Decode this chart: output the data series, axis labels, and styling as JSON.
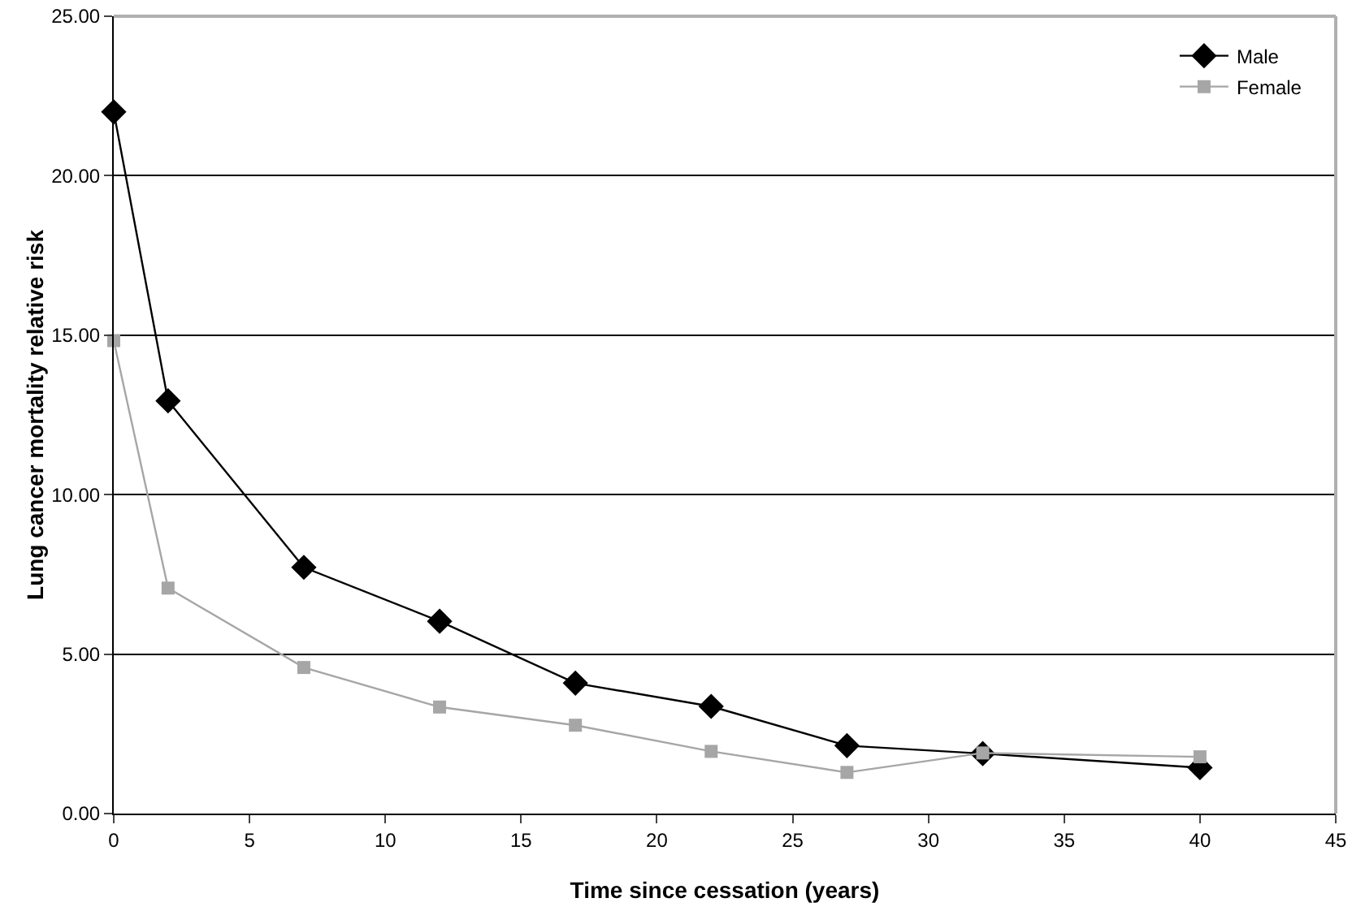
{
  "chart_data": {
    "type": "line",
    "xlabel": "Time since cessation (years)",
    "ylabel": "Lung cancer mortality relative risk",
    "x": [
      0,
      2,
      7,
      12,
      17,
      22,
      27,
      32,
      40
    ],
    "series": [
      {
        "name": "Male",
        "color": "#000000",
        "marker": "diamond",
        "values": [
          22.0,
          12.94,
          7.72,
          6.03,
          4.09,
          3.36,
          2.13,
          1.88,
          1.44
        ]
      },
      {
        "name": "Female",
        "color": "#a6a6a6",
        "marker": "square",
        "values": [
          14.83,
          7.07,
          4.58,
          3.34,
          2.77,
          1.95,
          1.29,
          1.9,
          1.78
        ]
      }
    ],
    "xlim": [
      0,
      45
    ],
    "xticks": [
      0,
      5,
      10,
      15,
      20,
      25,
      30,
      35,
      40,
      45
    ],
    "ylim": [
      0,
      25
    ],
    "yticks": [
      {
        "value": 0,
        "label": "0.00"
      },
      {
        "value": 5,
        "label": "5.00"
      },
      {
        "value": 10,
        "label": "10.00"
      },
      {
        "value": 15,
        "label": "15.00"
      },
      {
        "value": 20,
        "label": "20.00"
      },
      {
        "value": 25,
        "label": "25.00"
      }
    ],
    "grid": "y",
    "legend": "top right",
    "line_style": "solid"
  }
}
